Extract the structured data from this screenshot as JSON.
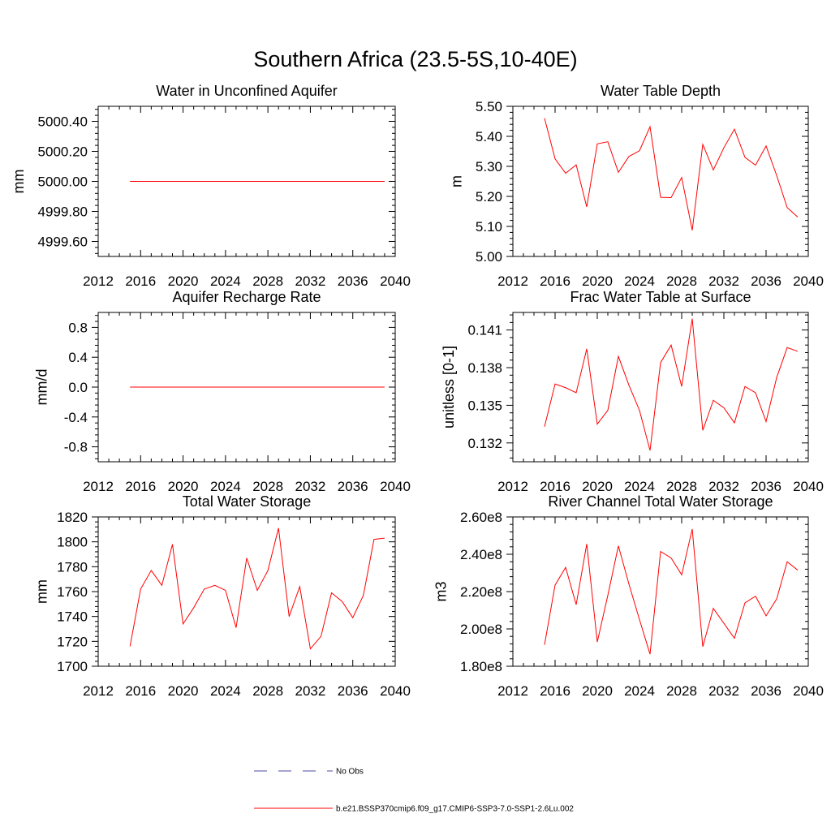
{
  "title": "Southern Africa (23.5-5S,10-40E)",
  "legend": {
    "items": [
      {
        "label": "No Obs",
        "color": "#4a4aa0",
        "dash": true
      },
      {
        "label": "b.e21.BSSP370cmip6.f09_g17.CMIP6-SSP3-7.0-SSP1-2.6Lu.002",
        "color": "#ff0000",
        "dash": false
      }
    ]
  },
  "chart_data": [
    {
      "type": "line",
      "title": "Water in Unconfined Aquifer",
      "xlabel": "",
      "ylabel": "mm",
      "xlim": [
        2012,
        2040
      ],
      "ylim": [
        4999.5,
        5000.5
      ],
      "xticks": [
        2012,
        2016,
        2020,
        2024,
        2028,
        2032,
        2036,
        2040
      ],
      "xtick_labels": [
        "2012",
        "2016",
        "2020",
        "2024",
        "2028",
        "2032",
        "2036",
        "2040"
      ],
      "yticks": [
        4999.6,
        4999.8,
        5000.0,
        5000.2,
        5000.4
      ],
      "ytick_labels": [
        "4999.60",
        "4999.80",
        "5000.00",
        "5000.20",
        "5000.40"
      ],
      "series": [
        {
          "color": "#ff0000",
          "x": [
            2015,
            2039
          ],
          "y": [
            5000.0,
            5000.0
          ]
        }
      ]
    },
    {
      "type": "line",
      "title": "Water Table Depth",
      "xlabel": "",
      "ylabel": "m",
      "xlim": [
        2012,
        2040
      ],
      "ylim": [
        5.0,
        5.5
      ],
      "xticks": [
        2012,
        2016,
        2020,
        2024,
        2028,
        2032,
        2036,
        2040
      ],
      "xtick_labels": [
        "2012",
        "2016",
        "2020",
        "2024",
        "2028",
        "2032",
        "2036",
        "2040"
      ],
      "yticks": [
        5.0,
        5.1,
        5.2,
        5.3,
        5.4,
        5.5
      ],
      "ytick_labels": [
        "5.00",
        "5.10",
        "5.20",
        "5.30",
        "5.40",
        "5.50"
      ],
      "series": [
        {
          "color": "#ff0000",
          "x": [
            2015,
            2016,
            2017,
            2018,
            2019,
            2020,
            2021,
            2022,
            2023,
            2024,
            2025,
            2026,
            2027,
            2028,
            2029,
            2030,
            2031,
            2032,
            2033,
            2034,
            2035,
            2036,
            2037,
            2038,
            2039
          ],
          "y": [
            5.46,
            5.325,
            5.277,
            5.305,
            5.165,
            5.375,
            5.382,
            5.28,
            5.333,
            5.352,
            5.432,
            5.197,
            5.196,
            5.263,
            5.087,
            5.373,
            5.288,
            5.362,
            5.424,
            5.33,
            5.304,
            5.368,
            5.27,
            5.163,
            5.131
          ]
        }
      ]
    },
    {
      "type": "line",
      "title": "Aquifer Recharge Rate",
      "xlabel": "",
      "ylabel": "mm/d",
      "xlim": [
        2012,
        2040
      ],
      "ylim": [
        -1.0,
        1.0
      ],
      "xticks": [
        2012,
        2016,
        2020,
        2024,
        2028,
        2032,
        2036,
        2040
      ],
      "xtick_labels": [
        "2012",
        "2016",
        "2020",
        "2024",
        "2028",
        "2032",
        "2036",
        "2040"
      ],
      "yticks": [
        -0.8,
        -0.4,
        0.0,
        0.4,
        0.8
      ],
      "ytick_labels": [
        "-0.8",
        "-0.4",
        "0.0",
        "0.4",
        "0.8"
      ],
      "series": [
        {
          "color": "#ff0000",
          "x": [
            2015,
            2039
          ],
          "y": [
            0.0,
            0.0
          ]
        }
      ]
    },
    {
      "type": "line",
      "title": "Frac Water Table at Surface",
      "xlabel": "",
      "ylabel": "unitless [0-1]",
      "xlim": [
        2012,
        2040
      ],
      "ylim": [
        0.1305,
        0.1424
      ],
      "xticks": [
        2012,
        2016,
        2020,
        2024,
        2028,
        2032,
        2036,
        2040
      ],
      "xtick_labels": [
        "2012",
        "2016",
        "2020",
        "2024",
        "2028",
        "2032",
        "2036",
        "2040"
      ],
      "yticks": [
        0.132,
        0.135,
        0.138,
        0.141
      ],
      "ytick_labels": [
        "0.132",
        "0.135",
        "0.138",
        "0.141"
      ],
      "series": [
        {
          "color": "#ff0000",
          "x": [
            2015,
            2016,
            2017,
            2018,
            2019,
            2020,
            2021,
            2022,
            2023,
            2024,
            2025,
            2026,
            2027,
            2028,
            2029,
            2030,
            2031,
            2032,
            2033,
            2034,
            2035,
            2036,
            2037,
            2038,
            2039
          ],
          "y": [
            0.1333,
            0.1367,
            0.1364,
            0.136,
            0.1395,
            0.1335,
            0.1346,
            0.1389,
            0.1366,
            0.1346,
            0.1314,
            0.1384,
            0.1398,
            0.1365,
            0.1419,
            0.133,
            0.1354,
            0.1348,
            0.1336,
            0.1365,
            0.136,
            0.1337,
            0.1372,
            0.1396,
            0.1393
          ]
        }
      ]
    },
    {
      "type": "line",
      "title": "Total Water Storage",
      "xlabel": "",
      "ylabel": "mm",
      "xlim": [
        2012,
        2040
      ],
      "ylim": [
        1700,
        1820
      ],
      "xticks": [
        2012,
        2016,
        2020,
        2024,
        2028,
        2032,
        2036,
        2040
      ],
      "xtick_labels": [
        "2012",
        "2016",
        "2020",
        "2024",
        "2028",
        "2032",
        "2036",
        "2040"
      ],
      "yticks": [
        1700,
        1720,
        1740,
        1760,
        1780,
        1800,
        1820
      ],
      "ytick_labels": [
        "1700",
        "1720",
        "1740",
        "1760",
        "1780",
        "1800",
        "1820"
      ],
      "series": [
        {
          "color": "#ff0000",
          "x": [
            2015,
            2016,
            2017,
            2018,
            2019,
            2020,
            2021,
            2022,
            2023,
            2024,
            2025,
            2026,
            2027,
            2028,
            2029,
            2030,
            2031,
            2032,
            2033,
            2034,
            2035,
            2036,
            2037,
            2038,
            2039
          ],
          "y": [
            1716,
            1762,
            1777,
            1765,
            1798,
            1734,
            1747,
            1762,
            1765,
            1761,
            1731,
            1787,
            1761,
            1777,
            1811,
            1740,
            1764,
            1714,
            1724,
            1759,
            1752,
            1739,
            1757,
            1802,
            1803
          ]
        }
      ]
    },
    {
      "type": "line",
      "title": "River Channel Total Water Storage",
      "xlabel": "",
      "ylabel": "m3",
      "xlim": [
        2012,
        2040
      ],
      "ylim": [
        180000000.0,
        260000000.0
      ],
      "xticks": [
        2012,
        2016,
        2020,
        2024,
        2028,
        2032,
        2036,
        2040
      ],
      "xtick_labels": [
        "2012",
        "2016",
        "2020",
        "2024",
        "2028",
        "2032",
        "2036",
        "2040"
      ],
      "yticks": [
        180000000.0,
        200000000.0,
        220000000.0,
        240000000.0,
        260000000.0
      ],
      "ytick_labels": [
        "1.80e8",
        "2.00e8",
        "2.20e8",
        "2.40e8",
        "2.60e8"
      ],
      "series": [
        {
          "color": "#ff0000",
          "x": [
            2015,
            2016,
            2017,
            2018,
            2019,
            2020,
            2021,
            2022,
            2023,
            2024,
            2025,
            2026,
            2027,
            2028,
            2029,
            2030,
            2031,
            2032,
            2033,
            2034,
            2035,
            2036,
            2037,
            2038,
            2039
          ],
          "y": [
            191500000.0,
            223500000.0,
            233000000.0,
            213000000.0,
            245500000.0,
            193000000.0,
            218000000.0,
            244500000.0,
            224000000.0,
            205000000.0,
            186500000.0,
            241500000.0,
            238000000.0,
            229000000.0,
            253500000.0,
            190500000.0,
            211000000.0,
            203000000.0,
            195000000.0,
            214000000.0,
            217500000.0,
            207000000.0,
            216000000.0,
            236000000.0,
            231500000.0
          ]
        }
      ]
    }
  ]
}
